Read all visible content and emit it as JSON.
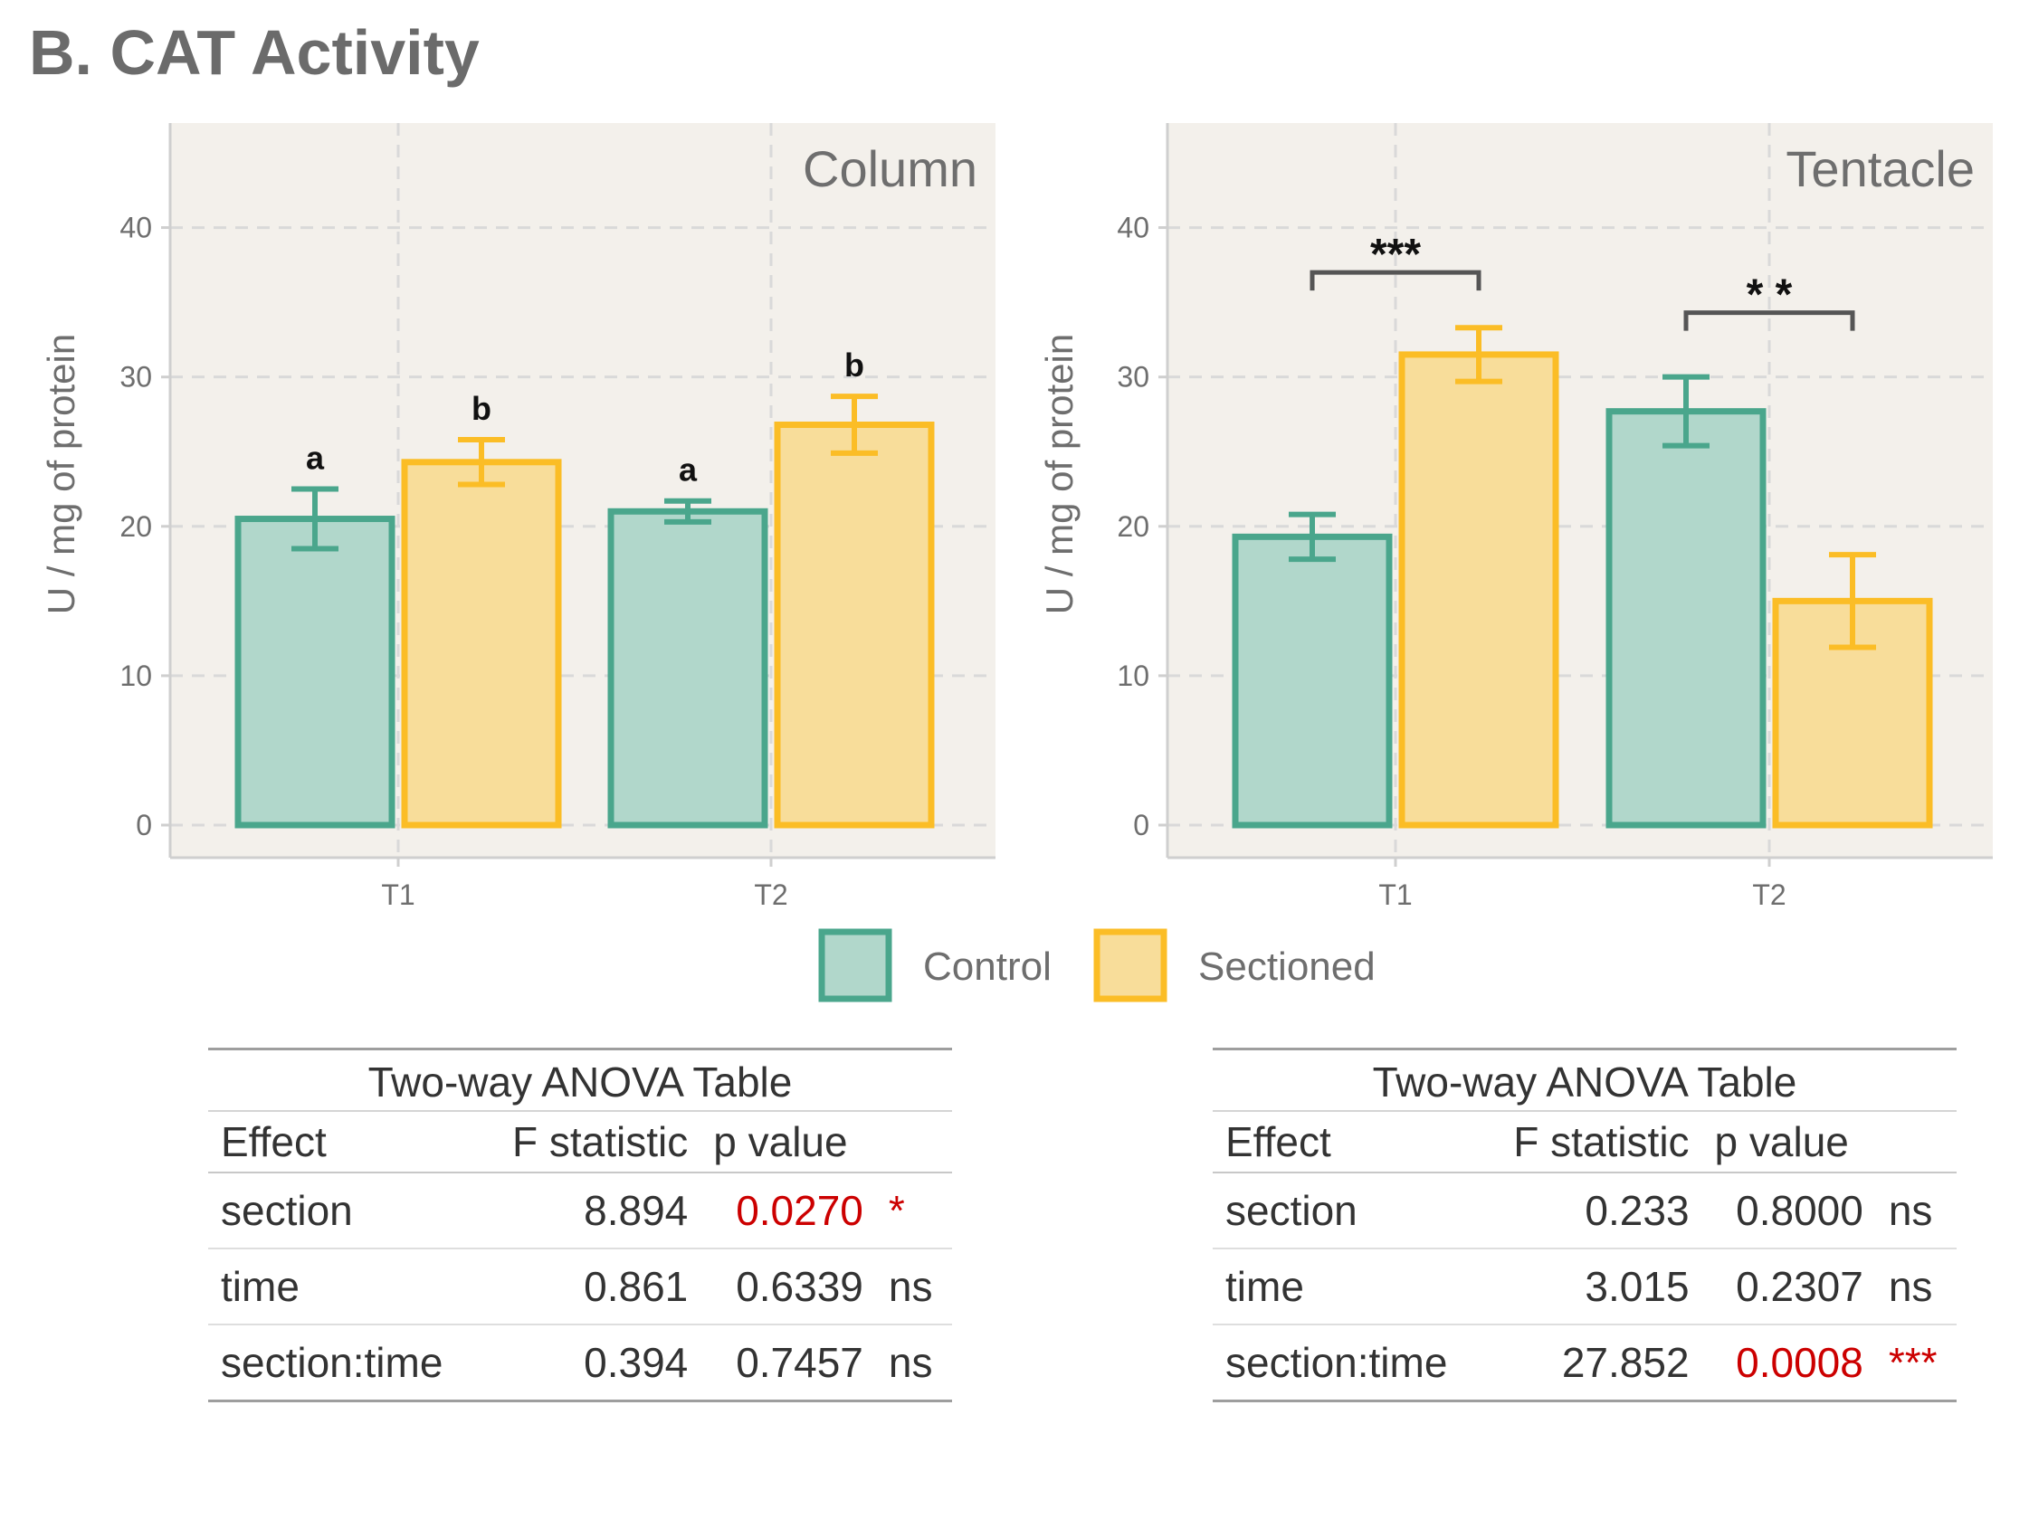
{
  "title": "B. CAT Activity",
  "colors": {
    "control_fill": "#b1d7cb",
    "control_stroke": "#4aa68c",
    "sectioned_fill": "#f8dd9a",
    "sectioned_stroke": "#fbbd26",
    "panel_bg": "#f3f0eb",
    "grid": "#d9d9d9",
    "axis": "#cfcfcf",
    "significant": "#cc0000",
    "bracket": "#555555"
  },
  "legend": {
    "items": [
      "Control",
      "Sectioned"
    ]
  },
  "chart_data": [
    {
      "type": "bar",
      "facet": "Column",
      "categories": [
        "T1",
        "T2"
      ],
      "ylabel": "U / mg  of protein",
      "ylim": [
        0,
        47
      ],
      "yticks": [
        0,
        10,
        20,
        30,
        40
      ],
      "grid": true,
      "series": [
        {
          "name": "Control",
          "values": [
            20.5,
            21.0
          ],
          "error": [
            2.0,
            0.7
          ],
          "letters": [
            "a",
            "a"
          ]
        },
        {
          "name": "Sectioned",
          "values": [
            24.3,
            26.8
          ],
          "error": [
            1.5,
            1.9
          ],
          "letters": [
            "b",
            "b"
          ]
        }
      ],
      "brackets": []
    },
    {
      "type": "bar",
      "facet": "Tentacle",
      "categories": [
        "T1",
        "T2"
      ],
      "ylabel": "U / mg  of protein",
      "ylim": [
        0,
        47
      ],
      "yticks": [
        0,
        10,
        20,
        30,
        40
      ],
      "grid": true,
      "series": [
        {
          "name": "Control",
          "values": [
            19.3,
            27.7
          ],
          "error": [
            1.5,
            2.3
          ],
          "letters": [
            "",
            ""
          ]
        },
        {
          "name": "Sectioned",
          "values": [
            31.5,
            15.0
          ],
          "error": [
            1.8,
            3.1
          ],
          "letters": [
            "",
            ""
          ]
        }
      ],
      "brackets": [
        {
          "category": "T1",
          "y": 37.0,
          "label": "***"
        },
        {
          "category": "T2",
          "y": 34.3,
          "label": "* *"
        }
      ]
    }
  ],
  "anova_tables": [
    {
      "caption": "Two-way ANOVA Table",
      "headers": [
        "Effect",
        "F statistic",
        "p value",
        ""
      ],
      "rows": [
        {
          "effect": "section",
          "f": "8.894",
          "p": "0.0270",
          "sig": "*",
          "significant": true
        },
        {
          "effect": "time",
          "f": "0.861",
          "p": "0.6339",
          "sig": "ns",
          "significant": false
        },
        {
          "effect": "section:time",
          "f": "0.394",
          "p": "0.7457",
          "sig": "ns",
          "significant": false
        }
      ]
    },
    {
      "caption": "Two-way ANOVA Table",
      "headers": [
        "Effect",
        "F statistic",
        "p value",
        ""
      ],
      "rows": [
        {
          "effect": "section",
          "f": "0.233",
          "p": "0.8000",
          "sig": "ns",
          "significant": false
        },
        {
          "effect": "time",
          "f": "3.015",
          "p": "0.2307",
          "sig": "ns",
          "significant": false
        },
        {
          "effect": "section:time",
          "f": "27.852",
          "p": "0.0008",
          "sig": "***",
          "significant": true
        }
      ]
    }
  ]
}
